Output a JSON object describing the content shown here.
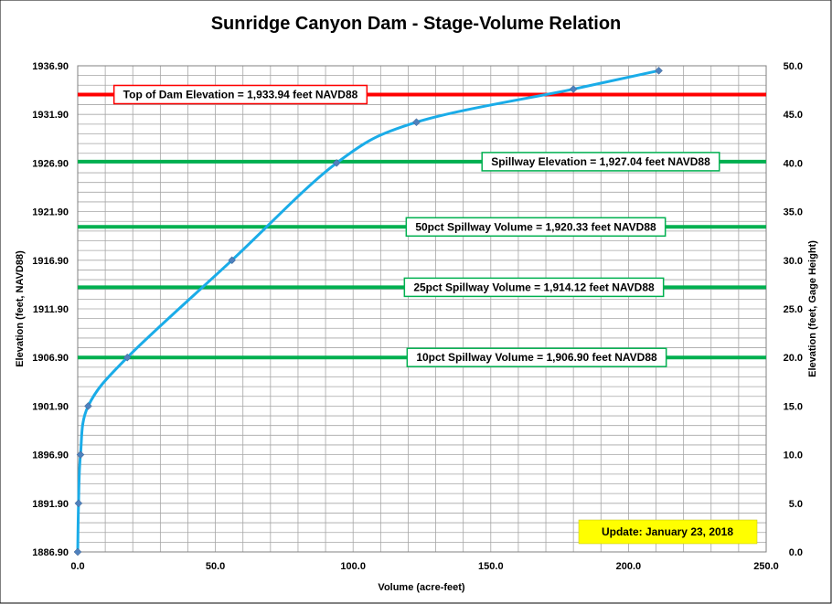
{
  "chart_data": {
    "type": "line",
    "title": "Sunridge Canyon Dam - Stage-Volume Relation",
    "xlabel": "Volume (acre-feet)",
    "ylabel": "Elevation  (feet, NAVD88)",
    "y2label": "Elevation  (feet, Gage Height)",
    "xlim": [
      0,
      250
    ],
    "ylim": [
      1886.9,
      1936.9
    ],
    "y2lim": [
      0,
      50
    ],
    "grid": true,
    "x_ticks": [
      "0.0",
      "50.0",
      "100.0",
      "150.0",
      "200.0",
      "250.0"
    ],
    "y_ticks": [
      "1886.90",
      "1891.90",
      "1896.90",
      "1901.90",
      "1906.90",
      "1911.90",
      "1916.90",
      "1921.90",
      "1926.90",
      "1931.90",
      "1936.90"
    ],
    "y2_ticks": [
      "0.0",
      "5.0",
      "10.0",
      "15.0",
      "20.0",
      "25.0",
      "30.0",
      "35.0",
      "40.0",
      "45.0",
      "50.0"
    ],
    "series": [
      {
        "color": "#1AACE8",
        "marker_color": "#4F81BD",
        "x": [
          0.0,
          0.3,
          1.0,
          3.8,
          18.0,
          56.0,
          94.0,
          123.0,
          180.0,
          211.0
        ],
        "y": [
          1886.9,
          1891.9,
          1896.9,
          1901.9,
          1906.9,
          1916.9,
          1926.9,
          1931.1,
          1934.5,
          1936.4
        ]
      }
    ],
    "reference_lines": [
      {
        "y": 1933.94,
        "color": "#FF0000",
        "label": "Top of Dam Elevation = 1,933.94  feet NAVD88"
      },
      {
        "y": 1927.04,
        "color": "#00B050",
        "label": "Spillway Elevation = 1,927.04  feet NAVD88"
      },
      {
        "y": 1920.33,
        "color": "#00B050",
        "label": "50pct Spillway Volume = 1,920.33  feet NAVD88"
      },
      {
        "y": 1914.12,
        "color": "#00B050",
        "label": "25pct Spillway Volume = 1,914.12  feet NAVD88"
      },
      {
        "y": 1906.9,
        "color": "#00B050",
        "label": "10pct Spillway Volume = 1,906.90  feet NAVD88"
      }
    ],
    "update_note": "Update: January 23, 2018",
    "update_note_color": "#FFFF00"
  }
}
